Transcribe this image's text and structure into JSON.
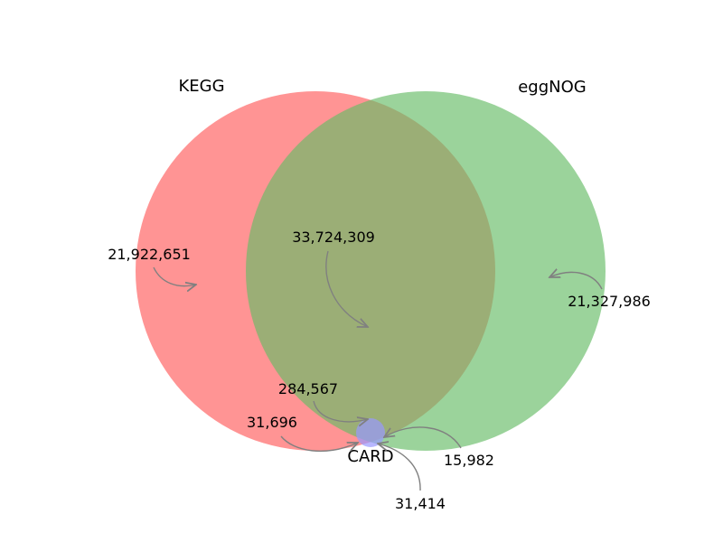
{
  "venn": {
    "sets": {
      "kegg": {
        "label": "KEGG",
        "color": "#ff6666",
        "opacity": 0.7
      },
      "eggnog": {
        "label": "eggNOG",
        "color": "#66bb66",
        "opacity": 0.65
      },
      "card": {
        "label": "CARD",
        "color": "#9999ff",
        "opacity": 0.7
      }
    },
    "regions": {
      "kegg_only": "21,922,651",
      "eggnog_only": "21,327,986",
      "kegg_eggnog": "33,724,309",
      "kegg_eggnog_card": "284,567",
      "kegg_card": "31,696",
      "eggnog_card": "15,982",
      "card_only": "31,414"
    },
    "arrow_color": "#808080"
  }
}
